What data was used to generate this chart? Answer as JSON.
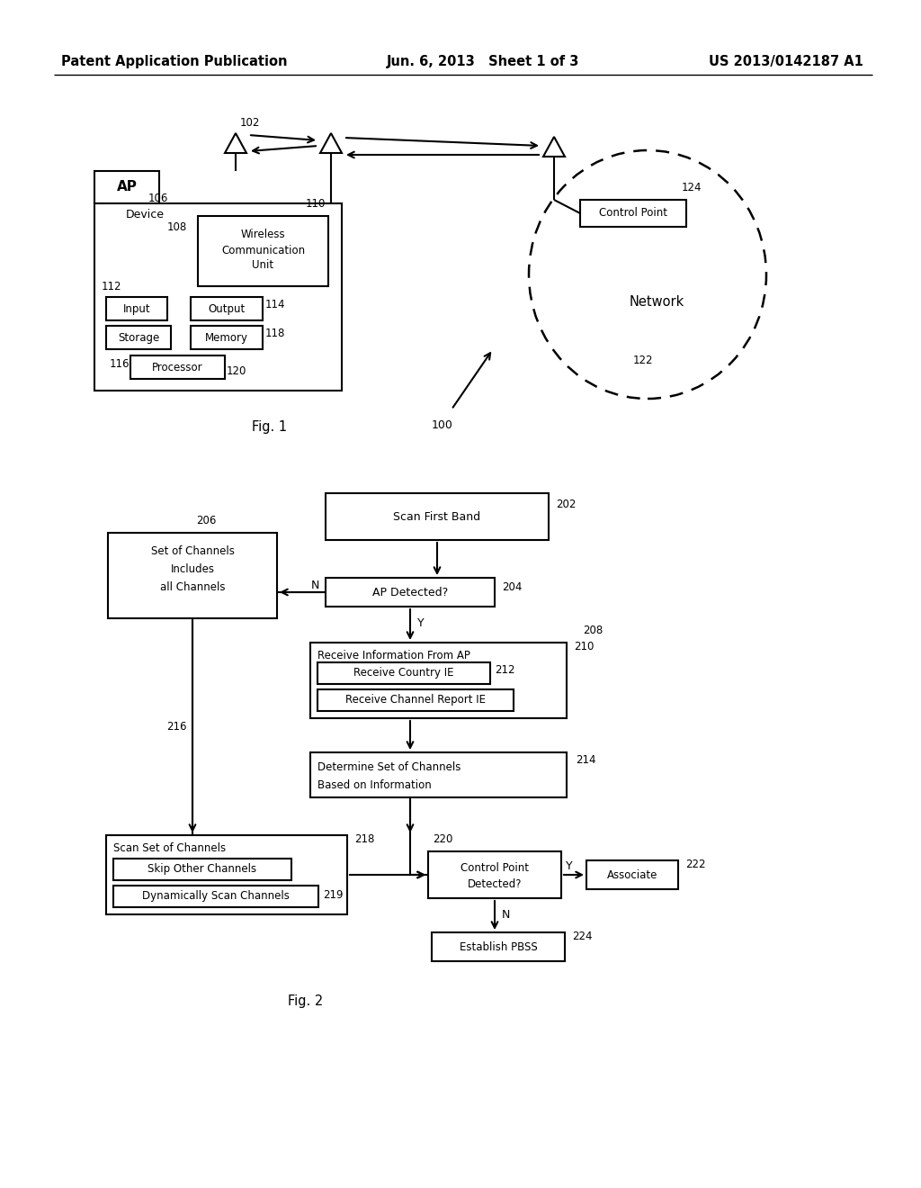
{
  "header_left": "Patent Application Publication",
  "header_center": "Jun. 6, 2013   Sheet 1 of 3",
  "header_right": "US 2013/0142187 A1",
  "bg_color": "#ffffff"
}
